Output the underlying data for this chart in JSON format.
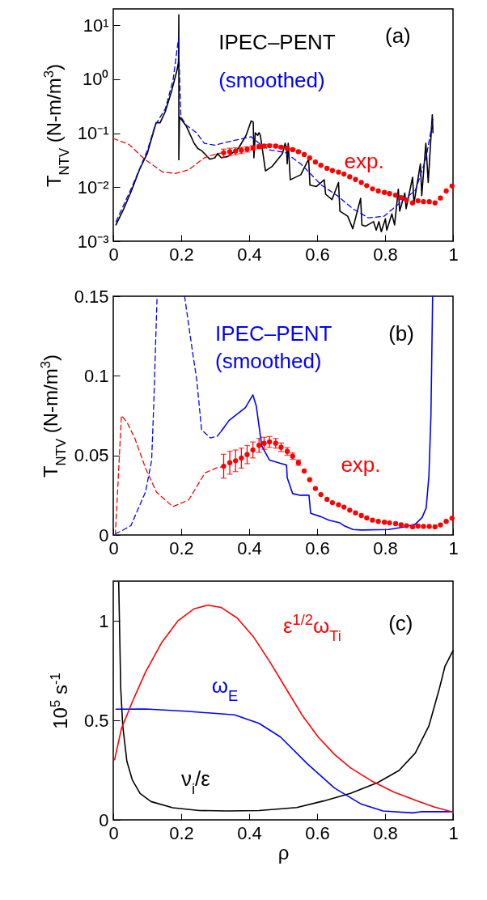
{
  "chart_data": [
    {
      "type": "line",
      "ylabel": "T$_{NTV}$ (N-m/m$^{3}$)",
      "log": true,
      "xlim": [
        0,
        1
      ],
      "xticks": [
        0,
        0.2,
        0.4,
        0.6,
        0.8,
        1
      ],
      "ylim": [
        0.001,
        20
      ],
      "yticks": [
        {
          "value": 10,
          "label": "10¹"
        },
        {
          "value": 1,
          "label": "10⁰"
        },
        {
          "value": 0.1,
          "label": "10⁻¹"
        },
        {
          "value": 0.01,
          "label": "10⁻²"
        },
        {
          "value": 0.001,
          "label": "10⁻³"
        }
      ],
      "grid": false,
      "annotations": [
        "(a)"
      ],
      "series": [
        {
          "name": "IPEC–PENT",
          "color": "#000000",
          "line_style": "solid",
          "x": [
            0.008,
            0.031,
            0.054,
            0.077,
            0.1,
            0.126,
            0.138,
            0.153,
            0.172,
            0.188,
            0.192,
            0.193,
            0.193,
            0.195,
            0.215,
            0.238,
            0.249,
            0.261,
            0.284,
            0.299,
            0.307,
            0.318,
            0.337,
            0.368,
            0.391,
            0.406,
            0.412,
            0.414,
            0.418,
            0.425,
            0.429,
            0.433,
            0.448,
            0.467,
            0.498,
            0.506,
            0.51,
            0.512,
            0.515,
            0.521,
            0.552,
            0.575,
            0.579,
            0.598,
            0.621,
            0.625,
            0.644,
            0.663,
            0.667,
            0.69,
            0.705,
            0.728,
            0.732,
            0.743,
            0.766,
            0.774,
            0.782,
            0.789,
            0.801,
            0.805,
            0.82,
            0.828,
            0.839,
            0.843,
            0.858,
            0.862,
            0.881,
            0.885,
            0.904,
            0.908,
            0.92,
            0.927,
            0.939,
            0.941
          ],
          "values": [
            0.002,
            0.004,
            0.0087,
            0.021,
            0.042,
            0.156,
            0.156,
            0.25,
            0.61,
            1.5,
            2.09,
            15.6,
            0.032,
            0.2,
            0.135,
            0.065,
            0.052,
            0.047,
            0.033,
            0.035,
            0.042,
            0.035,
            0.037,
            0.052,
            0.091,
            0.169,
            0.16,
            0.035,
            0.102,
            0.091,
            0.102,
            0.091,
            0.02,
            0.024,
            0.042,
            0.065,
            0.052,
            0.027,
            0.065,
            0.0137,
            0.017,
            0.033,
            0.0109,
            0.0103,
            0.0137,
            0.0074,
            0.0059,
            0.0122,
            0.0036,
            0.0029,
            0.0017,
            0.0062,
            0.002,
            0.0019,
            0.0023,
            0.0016,
            0.0023,
            0.0015,
            0.0026,
            0.0016,
            0.0032,
            0.002,
            0.0092,
            0.0036,
            0.0078,
            0.004,
            0.0153,
            0.005,
            0.027,
            0.007,
            0.065,
            0.0122,
            0.22,
            0.102
          ]
        },
        {
          "name": "(smoothed)",
          "color": "#0000ff",
          "line_style": "dashed",
          "x": [
            0.008,
            0.054,
            0.1,
            0.123,
            0.153,
            0.176,
            0.192,
            0.199,
            0.215,
            0.245,
            0.268,
            0.299,
            0.337,
            0.406,
            0.429,
            0.46,
            0.506,
            0.552,
            0.613,
            0.659,
            0.705,
            0.751,
            0.797,
            0.851,
            0.889,
            0.92,
            0.941
          ],
          "values": [
            0.0023,
            0.0098,
            0.047,
            0.14,
            0.28,
            0.96,
            5.7,
            0.2,
            0.14,
            0.102,
            0.065,
            0.06,
            0.069,
            0.086,
            0.065,
            0.049,
            0.044,
            0.027,
            0.0109,
            0.007,
            0.004,
            0.0027,
            0.0029,
            0.0056,
            0.0087,
            0.033,
            0.18
          ]
        },
        {
          "color": "#ff0000",
          "line_style": "dashed",
          "x": [
            0,
            0.046,
            0.092,
            0.146,
            0.184,
            0.222,
            0.268,
            0.307,
            0.325
          ],
          "values": [
            0.08,
            0.062,
            0.033,
            0.019,
            0.018,
            0.021,
            0.035,
            0.042,
            0.0432
          ]
        },
        {
          "name": "exp.",
          "type": "scatter",
          "marker": "circle",
          "color": "#ff0000",
          "x": [
            0.325,
            0.343,
            0.36,
            0.377,
            0.394,
            0.411,
            0.429,
            0.444,
            0.46,
            0.478,
            0.494,
            0.512,
            0.528,
            0.545,
            0.562,
            0.578,
            0.595,
            0.611,
            0.629,
            0.645,
            0.663,
            0.679,
            0.696,
            0.713,
            0.73,
            0.746,
            0.763,
            0.78,
            0.798,
            0.813,
            0.831,
            0.847,
            0.863,
            0.881,
            0.897,
            0.913,
            0.93,
            0.947,
            0.963,
            0.98,
            0.997
          ],
          "values": [
            0.0432,
            0.0454,
            0.0466,
            0.0483,
            0.0505,
            0.0534,
            0.0563,
            0.0576,
            0.0585,
            0.0576,
            0.0551,
            0.0525,
            0.0495,
            0.0454,
            0.0402,
            0.0347,
            0.0292,
            0.0254,
            0.0224,
            0.0203,
            0.019,
            0.0175,
            0.0156,
            0.0139,
            0.0122,
            0.0107,
            0.0093,
            0.0085,
            0.008,
            0.0076,
            0.0071,
            0.0064,
            0.0058,
            0.0051,
            0.0056,
            0.0054,
            0.0054,
            0.0051,
            0.0063,
            0.0085,
            0.0105
          ],
          "errors": [
            0.0075,
            0.0072,
            0.0068,
            0.0063,
            0.0057,
            0.005,
            0.0044,
            0.0038,
            0.0034,
            0.003,
            0.0027,
            0.0024,
            0.002,
            0.0017,
            null,
            null,
            null,
            null,
            null,
            null,
            null,
            null,
            null,
            null,
            null,
            null,
            null,
            null,
            null,
            null,
            null,
            null,
            null,
            null,
            null,
            null,
            null,
            null,
            null,
            null,
            null
          ]
        }
      ]
    },
    {
      "type": "line",
      "ylabel": "T$_{NTV}$ (N-m/m$^{3}$)",
      "xlim": [
        0,
        1
      ],
      "xticks": [
        0,
        0.2,
        0.4,
        0.6,
        0.8,
        1
      ],
      "ylim": [
        0,
        0.15
      ],
      "yticks": [
        0,
        0.05,
        0.1,
        0.15
      ],
      "grid": false,
      "annotations": [
        "(b)"
      ],
      "series": [
        {
          "color": "#0000ff",
          "line_style": "dashed",
          "x": [
            0.006,
            0.024,
            0.052,
            0.095,
            0.113,
            0.119,
            0.129,
            0.17,
            0.21,
            0.23,
            0.246,
            0.26,
            0.286,
            0.306,
            0.317
          ],
          "values": [
            0.0008,
            0.0025,
            0.0059,
            0.027,
            0.047,
            0.081,
            0.15,
            null,
            0.15,
            0.12,
            0.097,
            0.066,
            0.061,
            0.062,
            0.065
          ]
        },
        {
          "name": "IPEC–PENT (smoothed)",
          "color": "#0000ff",
          "line_style": "solid",
          "x": [
            0.317,
            0.341,
            0.389,
            0.411,
            0.421,
            0.437,
            0.46,
            0.492,
            0.51,
            0.512,
            0.528,
            0.548,
            0.571,
            0.576,
            0.581,
            0.611,
            0.635,
            0.667,
            0.679,
            0.706,
            0.73,
            0.81,
            0.857,
            0.889,
            0.909,
            0.921,
            0.929,
            0.935,
            0.94
          ],
          "values": [
            0.065,
            0.072,
            0.08,
            0.088,
            0.081,
            0.056,
            0.047,
            0.045,
            0.044,
            0.036,
            0.026,
            0.025,
            0.025,
            0.025,
            0.0136,
            0.0115,
            0.0093,
            0.0076,
            0.0059,
            0.0034,
            0.0031,
            0.0034,
            0.0051,
            0.0068,
            0.011,
            0.017,
            0.037,
            0.075,
            0.15
          ]
        },
        {
          "color": "#ff0000",
          "line_style": "dashed",
          "x": [
            0.006,
            0.012,
            0.024,
            0.04,
            0.063,
            0.095,
            0.127,
            0.175,
            0.222,
            0.27,
            0.302,
            0.325
          ],
          "values": [
            0,
            0.024,
            0.075,
            0.071,
            0.061,
            0.042,
            0.027,
            0.0178,
            0.022,
            0.039,
            0.042,
            0.0432
          ]
        },
        {
          "name": "exp.",
          "type": "scatter",
          "marker": "circle",
          "color": "#ff0000",
          "x": [
            0.325,
            0.343,
            0.36,
            0.377,
            0.394,
            0.411,
            0.429,
            0.444,
            0.46,
            0.478,
            0.494,
            0.512,
            0.528,
            0.545,
            0.562,
            0.578,
            0.595,
            0.611,
            0.629,
            0.645,
            0.663,
            0.679,
            0.696,
            0.713,
            0.73,
            0.746,
            0.763,
            0.78,
            0.798,
            0.813,
            0.831,
            0.847,
            0.863,
            0.881,
            0.897,
            0.913,
            0.93,
            0.947,
            0.963,
            0.98,
            0.997
          ],
          "values": [
            0.0432,
            0.0454,
            0.0466,
            0.0483,
            0.0505,
            0.0534,
            0.0563,
            0.0576,
            0.0585,
            0.0576,
            0.0551,
            0.0525,
            0.0495,
            0.0454,
            0.0402,
            0.0347,
            0.0292,
            0.0254,
            0.0224,
            0.0203,
            0.019,
            0.0175,
            0.0156,
            0.0139,
            0.0122,
            0.0107,
            0.0093,
            0.0085,
            0.008,
            0.0076,
            0.0071,
            0.0064,
            0.0058,
            0.0051,
            0.0056,
            0.0054,
            0.0054,
            0.0051,
            0.0063,
            0.0085,
            0.0105
          ],
          "errors": [
            0.0075,
            0.0072,
            0.0068,
            0.0063,
            0.0057,
            0.005,
            0.0044,
            0.0038,
            0.0034,
            0.003,
            0.0027,
            0.0024,
            0.002,
            0.0017,
            null,
            null,
            null,
            null,
            null,
            null,
            null,
            null,
            null,
            null,
            null,
            null,
            null,
            null,
            null,
            null,
            null,
            null,
            null,
            null,
            null,
            null,
            null,
            null,
            null,
            null,
            null
          ]
        }
      ]
    },
    {
      "type": "line",
      "xlabel": "ρ",
      "ylabel": "10$^{5}$ s$^{-1}$",
      "xlim": [
        0,
        1
      ],
      "xticks": [
        0,
        0.2,
        0.4,
        0.6,
        0.8,
        1
      ],
      "ylim": [
        0,
        1.2
      ],
      "yticks": [
        0,
        0.5,
        1
      ],
      "grid": false,
      "annotations": [
        "(c)"
      ],
      "series": [
        {
          "name": "ν$_{i}$/ε",
          "color": "#000000",
          "line_style": "solid",
          "x": [
            0.016,
            0.022,
            0.028,
            0.04,
            0.056,
            0.079,
            0.111,
            0.175,
            0.254,
            0.333,
            0.429,
            0.54,
            0.619,
            0.698,
            0.778,
            0.841,
            0.889,
            0.929,
            0.96,
            0.976,
            1
          ],
          "values": [
            1.196,
            0.661,
            0.472,
            0.295,
            0.201,
            0.133,
            0.092,
            0.061,
            0.047,
            0.045,
            0.047,
            0.062,
            0.095,
            0.133,
            0.187,
            0.248,
            0.336,
            0.472,
            0.661,
            0.77,
            0.851
          ]
        },
        {
          "name": "ω$_{E}$",
          "color": "#0000ff",
          "line_style": "solid",
          "x": [
            0.008,
            0.095,
            0.214,
            0.357,
            0.429,
            0.492,
            0.571,
            0.651,
            0.73,
            0.794,
            0.881,
            0.905,
            0.996
          ],
          "values": [
            0.556,
            0.557,
            0.546,
            0.528,
            0.485,
            0.417,
            0.282,
            0.16,
            0.079,
            0.045,
            0.035,
            0.041,
            0.041
          ]
        },
        {
          "name": "ε$^{1/2}$ω$_{Ti}$",
          "color": "#ff0000",
          "line_style": "solid",
          "x": [
            0.004,
            0.024,
            0.056,
            0.095,
            0.143,
            0.19,
            0.238,
            0.278,
            0.317,
            0.365,
            0.413,
            0.46,
            0.508,
            0.556,
            0.603,
            0.651,
            0.698,
            0.762,
            0.825,
            0.889,
            0.944,
            0.996
          ],
          "values": [
            0.302,
            0.458,
            0.593,
            0.743,
            0.892,
            1.0,
            1.061,
            1.079,
            1.068,
            1.014,
            0.919,
            0.797,
            0.661,
            0.526,
            0.417,
            0.329,
            0.262,
            0.194,
            0.14,
            0.099,
            0.065,
            0.041
          ]
        }
      ]
    }
  ]
}
